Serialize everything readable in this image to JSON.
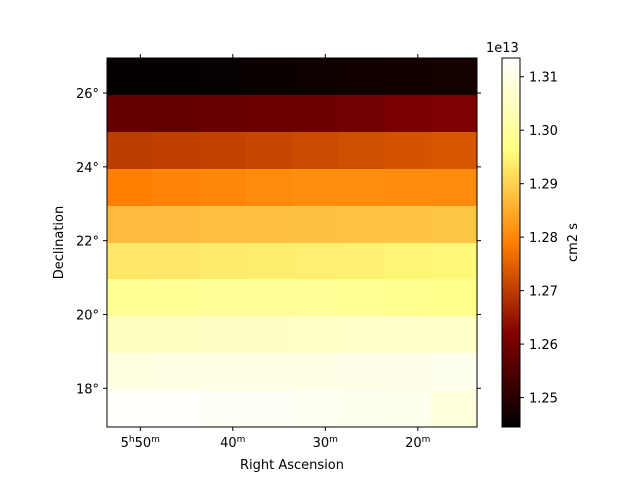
{
  "chart_data": {
    "type": "heatmap",
    "xlabel": "Right Ascension",
    "ylabel": "Declination",
    "colorbar_label": "cm2 s",
    "colorbar_multiplier": "1e13",
    "colormap": "afmhot",
    "grid": false,
    "color_range": [
      1.2445,
      1.3135
    ],
    "colorbar_ticks": [
      1.25,
      1.26,
      1.27,
      1.28,
      1.29,
      1.3,
      1.31
    ],
    "colorbar_tick_labels": [
      "1.25",
      "1.26",
      "1.27",
      "1.28",
      "1.29",
      "1.30",
      "1.31"
    ],
    "x_ticks": [
      {
        "main": "5",
        "unit1": "h",
        "main2": "50",
        "unit2": "m",
        "col": 0.72
      },
      {
        "main": "40",
        "unit2": "m",
        "col": 2.72
      },
      {
        "main": "30",
        "unit2": "m",
        "col": 4.72
      },
      {
        "main": "20",
        "unit2": "m",
        "col": 6.72
      }
    ],
    "y_ticks": [
      {
        "label": "18°",
        "row": 8.95
      },
      {
        "label": "20°",
        "row": 6.95
      },
      {
        "label": "22°",
        "row": 4.95
      },
      {
        "label": "24°",
        "row": 2.95
      },
      {
        "label": "26°",
        "row": 0.95
      }
    ],
    "grid_cols": 8,
    "grid_rows": 10,
    "values": [
      [
        1.245,
        1.2452,
        1.2455,
        1.2458,
        1.2462,
        1.2466,
        1.247,
        1.2474
      ],
      [
        1.258,
        1.2582,
        1.2585,
        1.259,
        1.2595,
        1.26,
        1.2608,
        1.2615
      ],
      [
        1.27,
        1.2703,
        1.2707,
        1.2712,
        1.2718,
        1.2724,
        1.273,
        1.2735
      ],
      [
        1.279,
        1.2795,
        1.28,
        1.2805,
        1.281,
        1.281,
        1.2808,
        1.2805
      ],
      [
        1.287,
        1.2872,
        1.2874,
        1.2876,
        1.2878,
        1.288,
        1.2882,
        1.2884
      ],
      [
        1.293,
        1.2932,
        1.2935,
        1.2938,
        1.294,
        1.2945,
        1.295,
        1.2955
      ],
      [
        1.299,
        1.2993,
        1.2995,
        1.2997,
        1.2995,
        1.299,
        1.2985,
        1.298
      ],
      [
        1.305,
        1.3052,
        1.3055,
        1.3057,
        1.3058,
        1.306,
        1.3062,
        1.3065
      ],
      [
        1.3095,
        1.3098,
        1.31,
        1.31,
        1.31,
        1.3102,
        1.3105,
        1.311
      ],
      [
        1.313,
        1.313,
        1.3125,
        1.3122,
        1.312,
        1.3115,
        1.311,
        1.309
      ]
    ]
  }
}
